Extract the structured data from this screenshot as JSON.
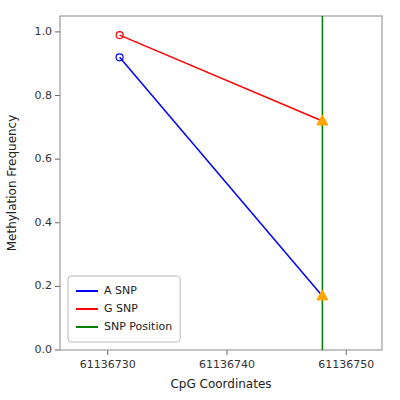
{
  "chart_data": {
    "type": "line",
    "xlabel": "CpG Coordinates",
    "ylabel": "Methylation Frequency",
    "x": [
      61136731,
      61136748
    ],
    "series": [
      {
        "name": "A SNP",
        "color": "blue",
        "colors": [
          "blue",
          "#FFA500"
        ],
        "marker": "circle-triangle",
        "values": [
          0.92,
          0.17
        ]
      },
      {
        "name": "G SNP",
        "color": "red",
        "colors": [
          "red",
          "#FFA500"
        ],
        "marker": "circle-triangle",
        "values": [
          0.99,
          0.72
        ]
      }
    ],
    "vlines": [
      {
        "name": "SNP Position",
        "color": "green",
        "x": 61136748
      }
    ],
    "xlim": [
      61136726,
      61136753
    ],
    "ylim": [
      0.0,
      1.05
    ],
    "xticks": [
      61136730,
      61136740,
      61136750
    ],
    "yticks": [
      {
        "value": 0.0,
        "label": "0.0"
      },
      0.2,
      0.4,
      0.6,
      0.8,
      {
        "value": 1.0,
        "label": "1.0"
      }
    ],
    "grid": false,
    "legend": "lower left"
  }
}
